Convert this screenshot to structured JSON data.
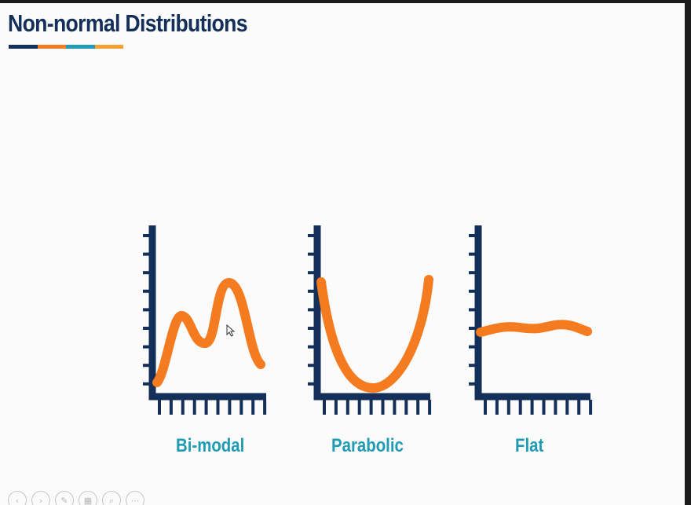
{
  "slide": {
    "title": "Non-normal Distributions",
    "title_bar_colors": [
      "#14305a",
      "#f47b20",
      "#1f9bb4",
      "#f7a233"
    ]
  },
  "colors": {
    "axis": "#14305a",
    "curve": "#f47b20",
    "label": "#1f9bb4"
  },
  "chart_data": [
    {
      "type": "line",
      "label": "Bi-modal"
    },
    {
      "type": "line",
      "label": "Parabolic"
    },
    {
      "type": "line",
      "label": "Flat"
    }
  ],
  "controls": [
    {
      "name": "previous-slide-icon",
      "glyph": "‹"
    },
    {
      "name": "next-slide-icon",
      "glyph": "›"
    },
    {
      "name": "pen-icon",
      "glyph": "✎"
    },
    {
      "name": "slides-grid-icon",
      "glyph": "▦"
    },
    {
      "name": "zoom-icon",
      "glyph": "⌕"
    },
    {
      "name": "more-options-icon",
      "glyph": "⋯"
    }
  ]
}
